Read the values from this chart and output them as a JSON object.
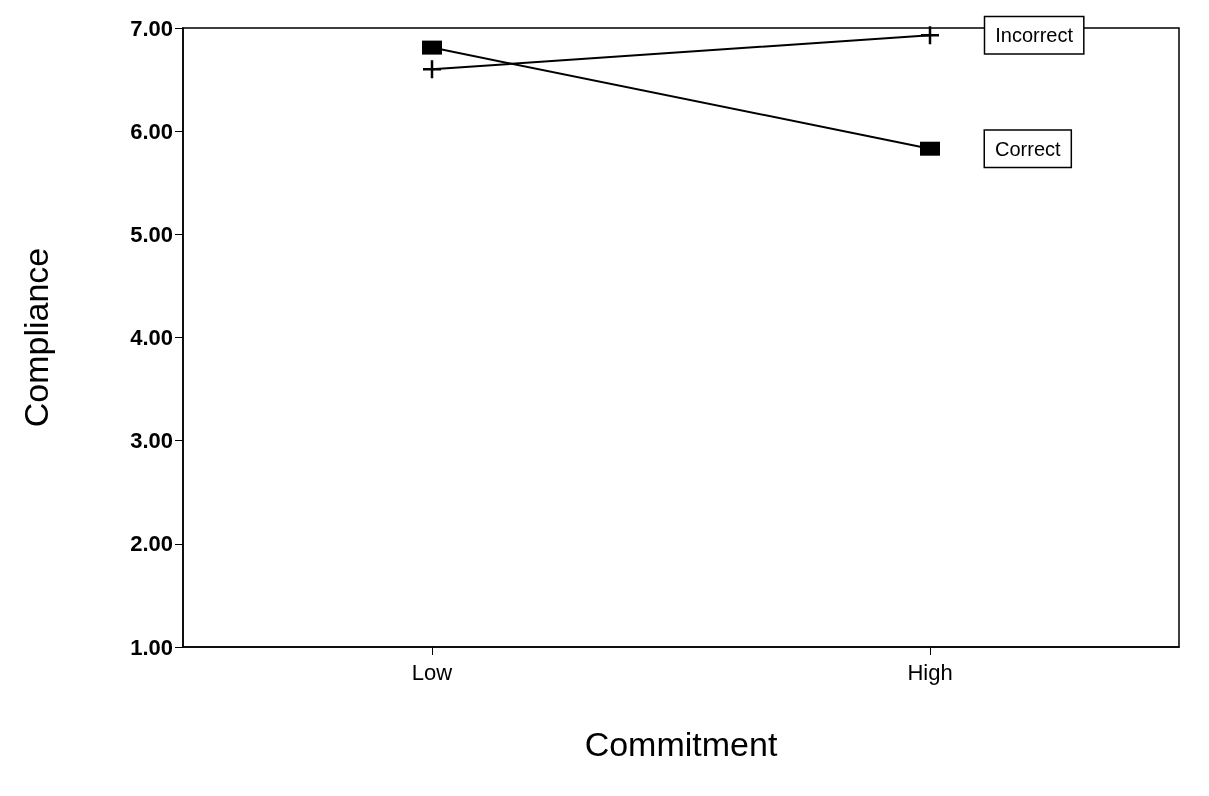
{
  "chart_data": {
    "type": "line",
    "xlabel": "Commitment",
    "ylabel": "Compliance",
    "categories": [
      "Low",
      "High"
    ],
    "series": [
      {
        "name": "Incorrect",
        "color": "#000000",
        "marker": "cross",
        "values": [
          6.6,
          6.93
        ]
      },
      {
        "name": "Correct",
        "color": "#000000",
        "marker": "square",
        "values": [
          6.81,
          5.83
        ]
      }
    ],
    "ylim": [
      1,
      7
    ],
    "yticks": [
      {
        "value": 1,
        "label": "1.00"
      },
      {
        "value": 2,
        "label": "2.00"
      },
      {
        "value": 3,
        "label": "3.00"
      },
      {
        "value": 4,
        "label": "4.00"
      },
      {
        "value": 5,
        "label": "5.00"
      },
      {
        "value": 6,
        "label": "6.00"
      },
      {
        "value": 7,
        "label": "7.00"
      }
    ],
    "grid": false,
    "legend": false,
    "line_style": "solid"
  }
}
